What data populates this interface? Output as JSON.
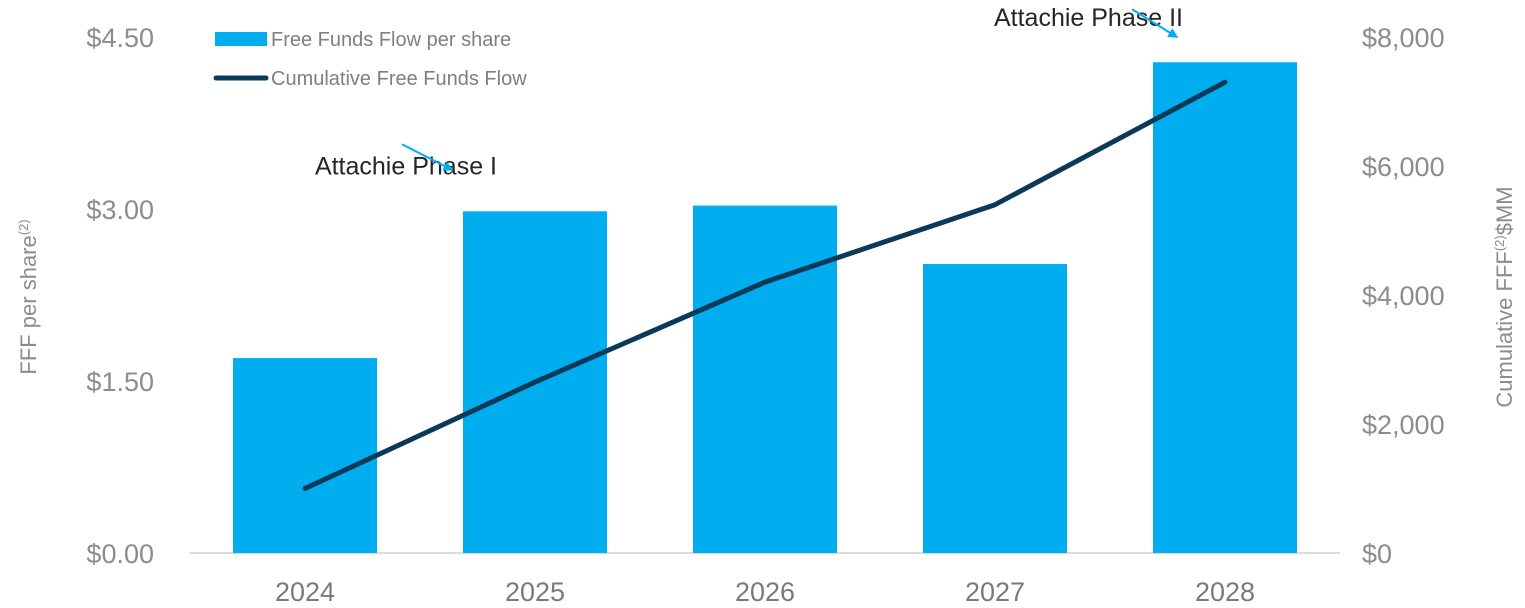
{
  "chart_data": {
    "type": "bar",
    "categories": [
      "2024",
      "2025",
      "2026",
      "2027",
      "2028"
    ],
    "series": [
      {
        "name": "Free Funds Flow per share",
        "type": "bar",
        "axis": "left",
        "color": "#00adef",
        "values": [
          1.7,
          2.98,
          3.03,
          2.52,
          4.28
        ]
      },
      {
        "name": "Cumulative Free Funds Flow",
        "type": "line",
        "axis": "right",
        "color": "#0b3a58",
        "values": [
          1000,
          2650,
          4200,
          5400,
          7300
        ]
      }
    ],
    "y_left": {
      "label": "FFF per share",
      "label_sup": "(2)",
      "ylim": [
        0,
        4.5
      ],
      "ticks": [
        0,
        1.5,
        3.0,
        4.5
      ],
      "tick_labels": [
        "$0.00",
        "$1.50",
        "$3.00",
        "$4.50"
      ]
    },
    "y_right": {
      "label": "Cumulative FFF",
      "label_sup": "(2)",
      "label_suffix": "$MM",
      "ylim": [
        0,
        8000
      ],
      "ticks": [
        0,
        2000,
        4000,
        6000,
        8000
      ],
      "tick_labels": [
        "$0",
        "$2,000",
        "$4,000",
        "$6,000",
        "$8,000"
      ]
    },
    "legend_position": "top-left",
    "annotations": [
      {
        "text": "Attachie Phase I",
        "category": "2025"
      },
      {
        "text": "Attachie Phase II",
        "category": "2028"
      }
    ],
    "grid": false
  }
}
